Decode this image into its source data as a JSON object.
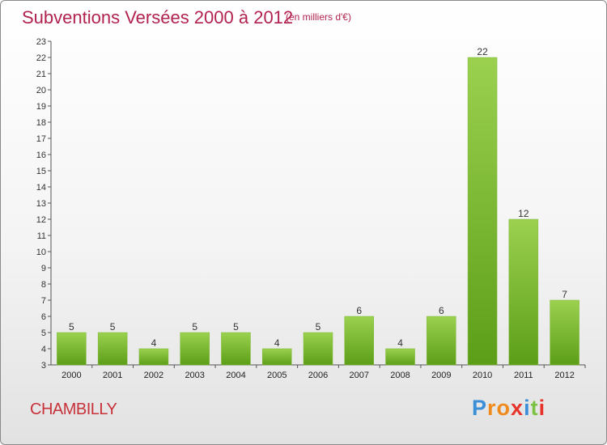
{
  "header": {
    "title": "Subventions Versées 2000 à 2012",
    "subtitle": "(en milliers d'€)"
  },
  "footer": {
    "commune": "CHAMBILLY",
    "logo_letters": [
      "P",
      "r",
      "o",
      "x",
      "i",
      "t",
      "i"
    ],
    "logo_colors": [
      "#3a8fd8",
      "#f08a1c",
      "#f08a1c",
      "#e8332a",
      "#3a8fd8",
      "#7cc242",
      "#e8332a"
    ]
  },
  "chart_data": {
    "type": "bar",
    "categories": [
      "2000",
      "2001",
      "2002",
      "2003",
      "2004",
      "2005",
      "2006",
      "2007",
      "2008",
      "2009",
      "2010",
      "2011",
      "2012"
    ],
    "values": [
      5,
      5,
      4,
      5,
      5,
      4,
      5,
      6,
      4,
      6,
      22,
      12,
      7
    ],
    "title": "Subventions Versées 2000 à 2012",
    "subtitle": "(en milliers d'€)",
    "xlabel": "",
    "ylabel": "",
    "ylim": [
      3,
      23
    ],
    "yticks": [
      3,
      4,
      5,
      6,
      7,
      8,
      9,
      10,
      11,
      12,
      13,
      14,
      15,
      16,
      17,
      18,
      19,
      20,
      21,
      22,
      23
    ],
    "grid": false,
    "bar_color_top": "#9bd14f",
    "bar_color_bottom": "#5c9e18"
  }
}
